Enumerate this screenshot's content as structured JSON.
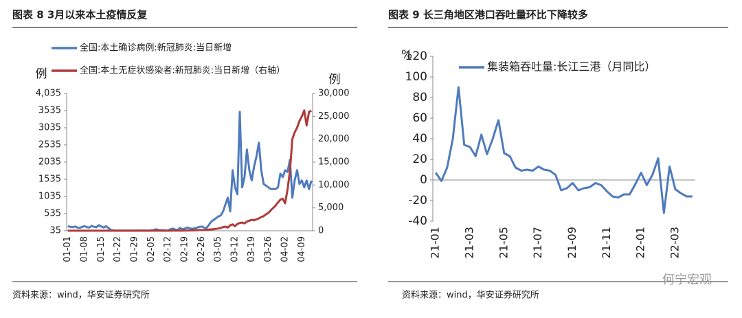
{
  "chart_data": [
    {
      "type": "line",
      "title": "图表 8 3月以来本土疫情反复",
      "y_label": "例",
      "y2_label": "例",
      "source": "资料来源：wind，华安证券研究所",
      "categories": [
        "01-01",
        null,
        null,
        null,
        null,
        null,
        null,
        "01-08",
        null,
        null,
        null,
        null,
        null,
        null,
        "01-15",
        null,
        null,
        null,
        null,
        null,
        null,
        "01-22",
        null,
        null,
        null,
        null,
        null,
        null,
        "01-29",
        null,
        null,
        null,
        null,
        null,
        null,
        "02-05",
        null,
        null,
        null,
        null,
        null,
        null,
        "02-12",
        null,
        null,
        null,
        null,
        null,
        null,
        "02-19",
        null,
        null,
        null,
        null,
        null,
        null,
        "02-26",
        null,
        null,
        null,
        null,
        null,
        null,
        "03-05",
        null,
        null,
        null,
        null,
        null,
        null,
        "03-12",
        null,
        null,
        null,
        null,
        null,
        null,
        "03-19",
        null,
        null,
        null,
        null,
        null,
        null,
        "03-26",
        null,
        null,
        null,
        null,
        null,
        null,
        "04-02",
        null,
        null,
        null,
        null,
        null,
        null,
        "04-09",
        null,
        null,
        null,
        null
      ],
      "ylim": [
        35,
        4035
      ],
      "yticks": [
        35,
        535,
        1035,
        1535,
        2035,
        2535,
        3035,
        3535,
        {
          "value": 4035,
          "label": "4,035"
        }
      ],
      "y2lim": [
        0,
        30000
      ],
      "y2ticks": [
        0,
        {
          "value": 5000,
          "label": "5,000"
        },
        {
          "value": 10000,
          "label": "10,000"
        },
        {
          "value": 15000,
          "label": "15,000"
        },
        {
          "value": 20000,
          "label": "20,000"
        },
        {
          "value": 25000,
          "label": "25,000"
        },
        {
          "value": 30000,
          "label": "30,000"
        }
      ],
      "series": [
        {
          "name": "全国:本土确诊病例:新冠肺炎:当日新增",
          "color": "#4f7bbd",
          "values": [
            170,
            150,
            140,
            160,
            130,
            120,
            150,
            170,
            140,
            130,
            180,
            150,
            140,
            200,
            160,
            130,
            170,
            120,
            60,
            50,
            40,
            40,
            40,
            40,
            40,
            40,
            40,
            40,
            40,
            40,
            45,
            40,
            40,
            40,
            40,
            50,
            60,
            80,
            60,
            50,
            60,
            40,
            50,
            80,
            100,
            70,
            60,
            120,
            80,
            100,
            130,
            110,
            90,
            110,
            120,
            150,
            160,
            130,
            110,
            200,
            300,
            350,
            400,
            450,
            480,
            600,
            800,
            1000,
            600,
            1800,
            1300,
            1100,
            3500,
            1300,
            1600,
            2400,
            1800,
            1500,
            1900,
            2200,
            2600,
            1800,
            1400,
            1350,
            1300,
            1250,
            1250,
            1250,
            1300,
            1700,
            1600,
            1800,
            1750,
            2100,
            1000,
            1500,
            1800,
            1400,
            1500,
            1300,
            1500,
            1250,
            1500
          ]
        },
        {
          "name": "全国:本土无症状感染者:新冠肺炎:当日新增（右轴）",
          "color": "#b03a3a",
          "axis": "y2",
          "values": [
            10,
            10,
            10,
            10,
            10,
            10,
            10,
            10,
            10,
            10,
            10,
            10,
            10,
            10,
            10,
            10,
            10,
            10,
            10,
            10,
            10,
            10,
            10,
            10,
            10,
            10,
            10,
            10,
            10,
            10,
            10,
            10,
            10,
            10,
            10,
            10,
            10,
            10,
            10,
            10,
            20,
            20,
            20,
            30,
            30,
            40,
            40,
            50,
            50,
            60,
            60,
            80,
            80,
            100,
            120,
            150,
            150,
            170,
            200,
            250,
            300,
            350,
            400,
            500,
            600,
            800,
            900,
            700,
            1200,
            1400,
            1000,
            1500,
            1700,
            1800,
            1600,
            2000,
            2200,
            2400,
            2300,
            2500,
            2700,
            3000,
            3200,
            3600,
            3900,
            4500,
            5000,
            5500,
            6200,
            6800,
            7000,
            6000,
            9000,
            13000,
            20000,
            21500,
            22500,
            24000,
            25000,
            26300,
            23000,
            26000,
            26200
          ]
        }
      ]
    },
    {
      "type": "line",
      "title": "图表 9 长三角地区港口吞吐量环比下降较多",
      "y_label": "%",
      "source": "资料来源：wind，华安证券研究所",
      "categories": [
        "21-01",
        null,
        null,
        null,
        null,
        null,
        "21-03",
        null,
        null,
        null,
        null,
        null,
        "21-05",
        null,
        null,
        null,
        null,
        null,
        "21-07",
        null,
        null,
        null,
        null,
        null,
        "21-09",
        null,
        null,
        null,
        null,
        null,
        "21-11",
        null,
        null,
        null,
        null,
        null,
        "22-01",
        null,
        null,
        null,
        null,
        null,
        "22-03",
        null,
        null,
        null
      ],
      "ylim": [
        -40,
        120
      ],
      "yticks": [
        -40,
        -20,
        0,
        20,
        40,
        60,
        80,
        100,
        120
      ],
      "series": [
        {
          "name": "集装箱吞吐量:长江三港（月同比）",
          "color": "#4f7bbd",
          "values": [
            7,
            -1,
            12,
            40,
            90,
            34,
            32,
            23,
            44,
            25,
            40,
            58,
            26,
            23,
            12,
            9,
            10,
            9,
            13,
            10,
            9,
            5,
            -10,
            -8,
            -3,
            -10,
            -8,
            -7,
            -3,
            -5,
            -11,
            -16,
            -17,
            -14,
            -14,
            -4,
            7,
            -5,
            5,
            21,
            -32,
            13,
            -9,
            -13,
            -16,
            -16
          ]
        }
      ]
    }
  ],
  "watermark": "何宁宏观"
}
